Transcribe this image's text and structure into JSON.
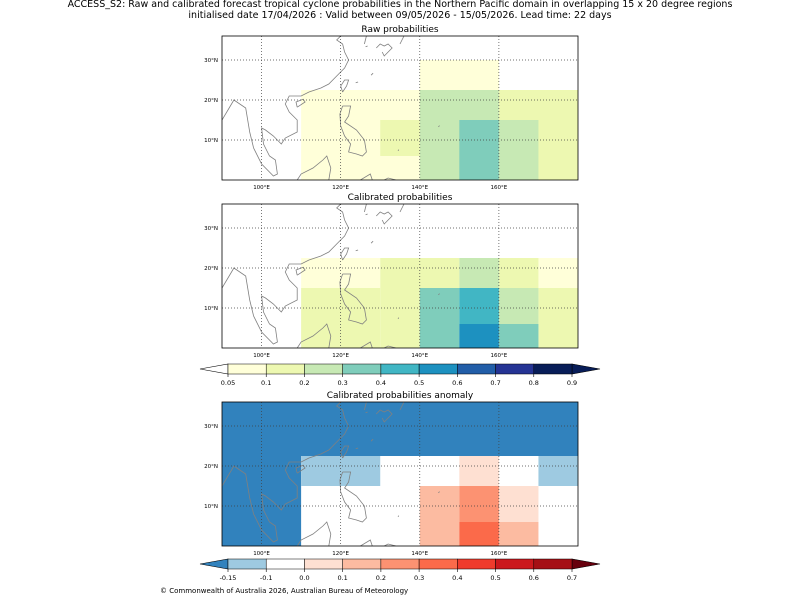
{
  "title_line1": "ACCESS_S2: Raw and calibrated forecast tropical cyclone probabilities in the Northern Pacific domain in overlapping 15 x 20 degree regions",
  "title_line2": "initialised date 17/04/2026 :  Valid between 09/05/2026 - 15/05/2026. Lead time: 22 days",
  "footer": "© Commonwealth of Australia 2026, Australian Bureau of Meteorology",
  "colors": {
    "prob_scale": [
      "#ffffd9",
      "#edf8b1",
      "#c7e9b4",
      "#7fcdbb",
      "#41b6c4",
      "#1d91c0",
      "#225ea8",
      "#253494",
      "#081d58"
    ],
    "prob_under": "#ffffff",
    "prob_over": "#081d58",
    "anom_scale": [
      "#9ecae1",
      "#ffffff",
      "#fee0d2",
      "#fcbba1",
      "#fc9272",
      "#fb6a4a",
      "#ef3b2c",
      "#cb181d",
      "#a50f15"
    ],
    "anom_under": "#3182bd",
    "anom_over": "#67000d",
    "coast": "#808080",
    "grid": "#404040"
  },
  "chart_data": [
    {
      "type": "heatmap",
      "title": "Raw probabilities",
      "xlim": [
        90,
        180
      ],
      "ylim": [
        0,
        36
      ],
      "xticks": [
        100,
        120,
        140,
        160
      ],
      "xtick_labels": [
        "100°E",
        "120°E",
        "140°E",
        "160°E"
      ],
      "yticks": [
        10,
        20,
        30
      ],
      "ytick_labels": [
        "10°N",
        "20°N",
        "30°N"
      ],
      "cells": [
        {
          "lon0": 140,
          "lon1": 160,
          "lat0": 22.5,
          "lat1": 30,
          "level": 0
        },
        {
          "lon0": 110,
          "lon1": 140,
          "lat0": 0,
          "lat1": 22.5,
          "level": 0
        },
        {
          "lon0": 140,
          "lon1": 160,
          "lat0": 0,
          "lat1": 22.5,
          "level": 2
        },
        {
          "lon0": 160,
          "lon1": 180,
          "lat0": 0,
          "lat1": 22.5,
          "level": 1
        },
        {
          "lon0": 130,
          "lon1": 140,
          "lat0": 6,
          "lat1": 15,
          "level": 1
        },
        {
          "lon0": 150,
          "lon1": 160,
          "lat0": 0,
          "lat1": 15,
          "level": 3
        },
        {
          "lon0": 160,
          "lon1": 170,
          "lat0": 0,
          "lat1": 15,
          "level": 2
        }
      ]
    },
    {
      "type": "heatmap",
      "title": "Calibrated probabilities",
      "xlim": [
        90,
        180
      ],
      "ylim": [
        0,
        36
      ],
      "xticks": [
        100,
        120,
        140,
        160
      ],
      "xtick_labels": [
        "100°E",
        "120°E",
        "140°E",
        "160°E"
      ],
      "yticks": [
        10,
        20,
        30
      ],
      "ytick_labels": [
        "10°N",
        "20°N",
        "30°N"
      ],
      "cells": [
        {
          "lon0": 110,
          "lon1": 130,
          "lat0": 15,
          "lat1": 22.5,
          "level": 0
        },
        {
          "lon0": 170,
          "lon1": 180,
          "lat0": 15,
          "lat1": 22.5,
          "level": 0
        },
        {
          "lon0": 110,
          "lon1": 130,
          "lat0": 0,
          "lat1": 15,
          "level": 1
        },
        {
          "lon0": 130,
          "lon1": 150,
          "lat0": 15,
          "lat1": 22.5,
          "level": 1
        },
        {
          "lon0": 130,
          "lon1": 140,
          "lat0": 0,
          "lat1": 15,
          "level": 1
        },
        {
          "lon0": 160,
          "lon1": 170,
          "lat0": 15,
          "lat1": 22.5,
          "level": 1
        },
        {
          "lon0": 170,
          "lon1": 180,
          "lat0": 0,
          "lat1": 15,
          "level": 1
        },
        {
          "lon0": 150,
          "lon1": 160,
          "lat0": 15,
          "lat1": 22.5,
          "level": 2
        },
        {
          "lon0": 160,
          "lon1": 170,
          "lat0": 6,
          "lat1": 15,
          "level": 2
        },
        {
          "lon0": 140,
          "lon1": 150,
          "lat0": 0,
          "lat1": 15,
          "level": 3
        },
        {
          "lon0": 160,
          "lon1": 170,
          "lat0": 0,
          "lat1": 6,
          "level": 3
        },
        {
          "lon0": 150,
          "lon1": 160,
          "lat0": 6,
          "lat1": 15,
          "level": 4
        },
        {
          "lon0": 150,
          "lon1": 160,
          "lat0": 0,
          "lat1": 6,
          "level": 5
        }
      ]
    },
    {
      "type": "heatmap",
      "title": "Calibrated probabilities anomaly",
      "xlim": [
        90,
        180
      ],
      "ylim": [
        0,
        36
      ],
      "xticks": [
        100,
        120,
        140,
        160
      ],
      "xtick_labels": [
        "100°E",
        "120°E",
        "140°E",
        "160°E"
      ],
      "yticks": [
        10,
        20,
        30
      ],
      "ytick_labels": [
        "10°N",
        "20°N",
        "30°N"
      ],
      "cells": [
        {
          "lon0": 90,
          "lon1": 180,
          "lat0": 22.5,
          "lat1": 36,
          "level": -1
        },
        {
          "lon0": 90,
          "lon1": 110,
          "lat0": 0,
          "lat1": 22.5,
          "level": -1
        },
        {
          "lon0": 110,
          "lon1": 130,
          "lat0": 15,
          "lat1": 22.5,
          "level": 0
        },
        {
          "lon0": 170,
          "lon1": 180,
          "lat0": 15,
          "lat1": 22.5,
          "level": 0
        },
        {
          "lon0": 150,
          "lon1": 160,
          "lat0": 15,
          "lat1": 22.5,
          "level": 2
        },
        {
          "lon0": 160,
          "lon1": 170,
          "lat0": 6,
          "lat1": 15,
          "level": 2
        },
        {
          "lon0": 140,
          "lon1": 150,
          "lat0": 0,
          "lat1": 15,
          "level": 3
        },
        {
          "lon0": 160,
          "lon1": 170,
          "lat0": 0,
          "lat1": 6,
          "level": 3
        },
        {
          "lon0": 150,
          "lon1": 160,
          "lat0": 6,
          "lat1": 15,
          "level": 4
        },
        {
          "lon0": 150,
          "lon1": 160,
          "lat0": 0,
          "lat1": 6,
          "level": 5
        }
      ]
    }
  ],
  "colorbars": [
    {
      "name": "probability",
      "ticks": [
        "0.05",
        "0.1",
        "0.2",
        "0.3",
        "0.4",
        "0.5",
        "0.6",
        "0.7",
        "0.8",
        "0.9"
      ]
    },
    {
      "name": "anomaly",
      "ticks": [
        "-0.15",
        "-0.1",
        "0.0",
        "0.1",
        "0.2",
        "0.3",
        "0.4",
        "0.5",
        "0.6",
        "0.7"
      ]
    }
  ]
}
